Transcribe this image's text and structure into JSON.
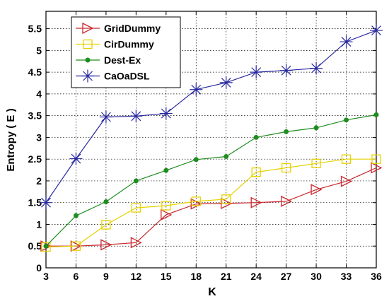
{
  "chart_data": {
    "type": "line",
    "xlabel": "K",
    "ylabel": "Entropy ( E )",
    "x": [
      3,
      6,
      9,
      12,
      15,
      18,
      21,
      24,
      27,
      30,
      33,
      36
    ],
    "xlim": [
      3,
      36
    ],
    "ylim": [
      0,
      5.9
    ],
    "xticks": [
      "3",
      "6",
      "9",
      "12",
      "15",
      "18",
      "21",
      "24",
      "27",
      "30",
      "33",
      "36"
    ],
    "yticks": [
      "0",
      "0.5",
      "1",
      "1.5",
      "2",
      "2.5",
      "3",
      "3.5",
      "4",
      "4.5",
      "5",
      "5.5"
    ],
    "ytick_values": [
      0,
      0.5,
      1,
      1.5,
      2,
      2.5,
      3,
      3.5,
      4,
      4.5,
      5,
      5.5
    ],
    "grid": true,
    "legend_position": "top-left",
    "series": [
      {
        "name": "GridDummy",
        "color": "#c8282d",
        "marker": "triangle-right",
        "values": [
          0.5,
          0.5,
          0.53,
          0.58,
          1.22,
          1.47,
          1.48,
          1.5,
          1.53,
          1.8,
          1.99,
          2.3
        ]
      },
      {
        "name": "CirDummy",
        "color": "#e6d200",
        "marker": "square",
        "values": [
          0.48,
          0.5,
          0.99,
          1.38,
          1.43,
          1.53,
          1.58,
          2.2,
          2.3,
          2.4,
          2.5,
          2.5
        ]
      },
      {
        "name": "Dest-Ex",
        "color": "#1e8c1e",
        "marker": "dot",
        "values": [
          0.5,
          1.2,
          1.52,
          2.0,
          2.24,
          2.49,
          2.56,
          3.0,
          3.13,
          3.22,
          3.4,
          3.52
        ]
      },
      {
        "name": "CaOaDSL",
        "color": "#2828a0",
        "marker": "asterisk",
        "values": [
          1.5,
          2.51,
          3.47,
          3.49,
          3.55,
          4.1,
          4.26,
          4.5,
          4.54,
          4.59,
          5.2,
          5.46
        ]
      }
    ]
  }
}
